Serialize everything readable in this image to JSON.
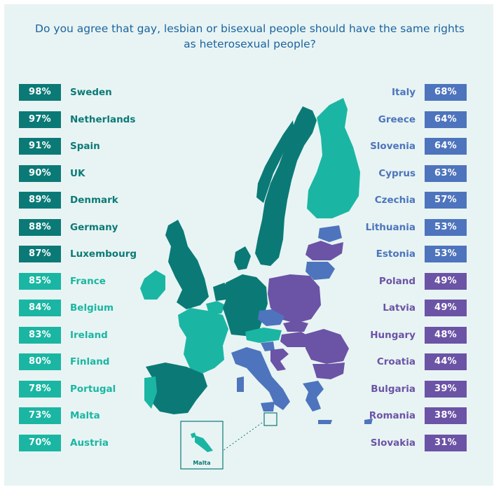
{
  "title": "Do you agree that gay, lesbian or bisexual people should have the same rights as heterosexual people?",
  "inset_label": "Malta",
  "colors": {
    "dark_teal": "#0b7a77",
    "teal": "#1ab6a3",
    "blue": "#4d74bd",
    "purple": "#6b53a6"
  },
  "chart_data": {
    "type": "map",
    "title": "Do you agree that gay, lesbian or bisexual people should have the same rights as heterosexual people?",
    "unit": "%",
    "left": [
      {
        "country": "Sweden",
        "value": 98,
        "label": "98%",
        "color": "#0b7a77"
      },
      {
        "country": "Netherlands",
        "value": 97,
        "label": "97%",
        "color": "#0b7a77"
      },
      {
        "country": "Spain",
        "value": 91,
        "label": "91%",
        "color": "#0b7a77"
      },
      {
        "country": "UK",
        "value": 90,
        "label": "90%",
        "color": "#0b7a77"
      },
      {
        "country": "Denmark",
        "value": 89,
        "label": "89%",
        "color": "#0b7a77"
      },
      {
        "country": "Germany",
        "value": 88,
        "label": "88%",
        "color": "#0b7a77"
      },
      {
        "country": "Luxembourg",
        "value": 87,
        "label": "87%",
        "color": "#0b7a77"
      },
      {
        "country": "France",
        "value": 85,
        "label": "85%",
        "color": "#1ab6a3"
      },
      {
        "country": "Belgium",
        "value": 84,
        "label": "84%",
        "color": "#1ab6a3"
      },
      {
        "country": "Ireland",
        "value": 83,
        "label": "83%",
        "color": "#1ab6a3"
      },
      {
        "country": "Finland",
        "value": 80,
        "label": "80%",
        "color": "#1ab6a3"
      },
      {
        "country": "Portugal",
        "value": 78,
        "label": "78%",
        "color": "#1ab6a3"
      },
      {
        "country": "Malta",
        "value": 73,
        "label": "73%",
        "color": "#1ab6a3"
      },
      {
        "country": "Austria",
        "value": 70,
        "label": "70%",
        "color": "#1ab6a3"
      }
    ],
    "right": [
      {
        "country": "Italy",
        "value": 68,
        "label": "68%",
        "color": "#4d74bd"
      },
      {
        "country": "Greece",
        "value": 64,
        "label": "64%",
        "color": "#4d74bd"
      },
      {
        "country": "Slovenia",
        "value": 64,
        "label": "64%",
        "color": "#4d74bd"
      },
      {
        "country": "Cyprus",
        "value": 63,
        "label": "63%",
        "color": "#4d74bd"
      },
      {
        "country": "Czechia",
        "value": 57,
        "label": "57%",
        "color": "#4d74bd"
      },
      {
        "country": "Lithuania",
        "value": 53,
        "label": "53%",
        "color": "#4d74bd"
      },
      {
        "country": "Estonia",
        "value": 53,
        "label": "53%",
        "color": "#4d74bd"
      },
      {
        "country": "Poland",
        "value": 49,
        "label": "49%",
        "color": "#6b53a6"
      },
      {
        "country": "Latvia",
        "value": 49,
        "label": "49%",
        "color": "#6b53a6"
      },
      {
        "country": "Hungary",
        "value": 48,
        "label": "48%",
        "color": "#6b53a6"
      },
      {
        "country": "Croatia",
        "value": 44,
        "label": "44%",
        "color": "#6b53a6"
      },
      {
        "country": "Bulgaria",
        "value": 39,
        "label": "39%",
        "color": "#6b53a6"
      },
      {
        "country": "Romania",
        "value": 38,
        "label": "38%",
        "color": "#6b53a6"
      },
      {
        "country": "Slovakia",
        "value": 31,
        "label": "31%",
        "color": "#6b53a6"
      }
    ]
  }
}
